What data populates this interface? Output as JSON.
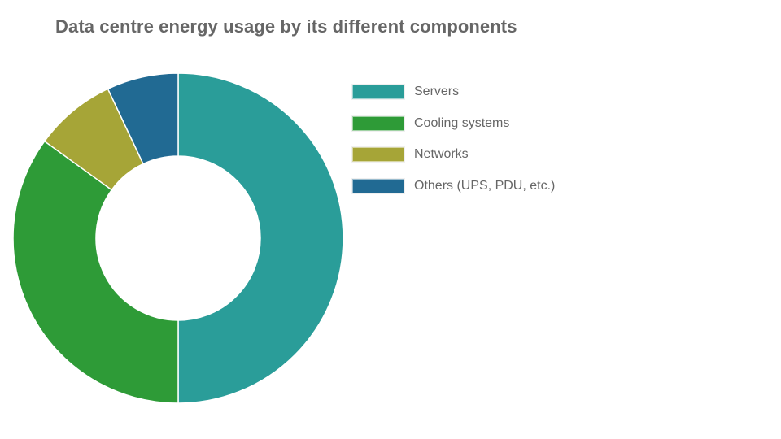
{
  "chart_data": {
    "type": "pie",
    "variant": "doughnut",
    "title": "Data centre energy usage by its different components",
    "categories": [
      "Servers",
      "Cooling systems",
      "Networks",
      "Others (UPS, PDU, etc.)"
    ],
    "values": [
      50,
      35,
      8,
      7
    ],
    "colors": [
      "#2a9d99",
      "#2e9b37",
      "#a6a537",
      "#216a93"
    ],
    "legend_position": "right",
    "start_angle": "top, clockwise"
  }
}
